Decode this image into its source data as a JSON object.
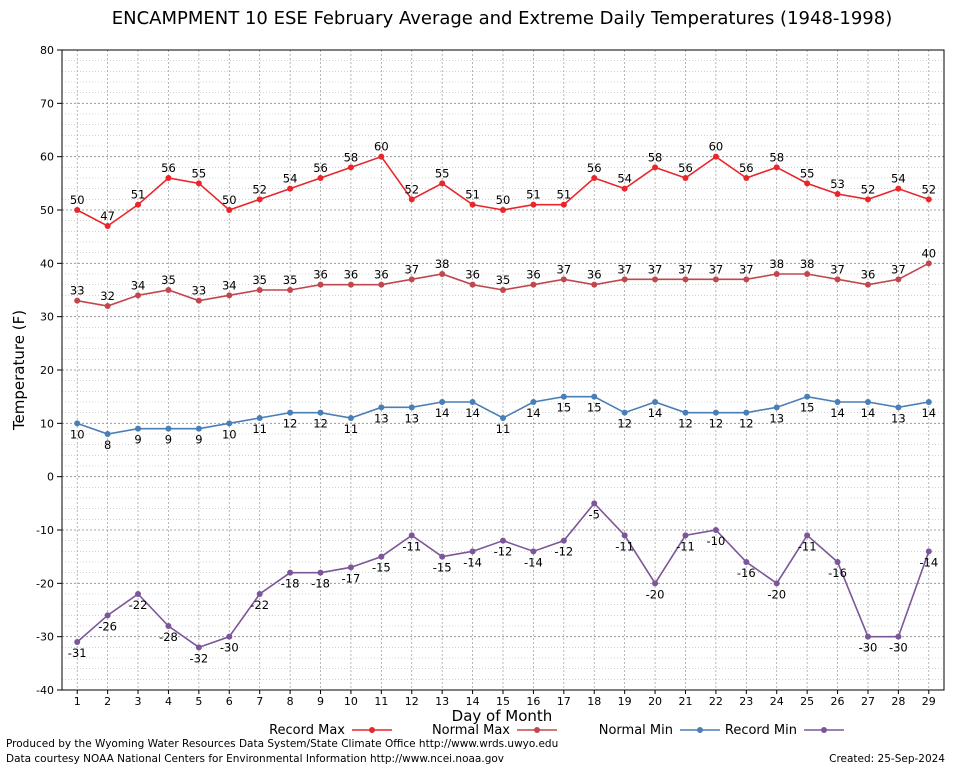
{
  "chart_data": {
    "type": "line",
    "title": "ENCAMPMENT 10 ESE February Average and Extreme Daily Temperatures (1948-1998)",
    "xlabel": "Day of Month",
    "ylabel": "Temperature (F)",
    "ylim": [
      -40,
      80
    ],
    "yticks": [
      -40,
      -30,
      -20,
      -10,
      0,
      10,
      20,
      30,
      40,
      50,
      60,
      70,
      80
    ],
    "x": [
      1,
      2,
      3,
      4,
      5,
      6,
      7,
      8,
      9,
      10,
      11,
      12,
      13,
      14,
      15,
      16,
      17,
      18,
      19,
      20,
      21,
      22,
      23,
      24,
      25,
      26,
      27,
      28,
      29
    ],
    "grid": true,
    "legend_position": "bottom",
    "series": [
      {
        "name": "Record Max",
        "color": "#e8262b",
        "values": [
          50,
          47,
          51,
          56,
          55,
          50,
          52,
          54,
          56,
          58,
          60,
          52,
          55,
          51,
          50,
          51,
          51,
          56,
          54,
          58,
          56,
          60,
          56,
          58,
          55,
          53,
          52,
          54,
          52
        ]
      },
      {
        "name": "Normal Max",
        "color": "#c0484d",
        "values": [
          33,
          32,
          34,
          35,
          33,
          34,
          35,
          35,
          36,
          36,
          36,
          37,
          38,
          36,
          35,
          36,
          37,
          36,
          37,
          37,
          37,
          37,
          37,
          38,
          38,
          37,
          36,
          37,
          40
        ]
      },
      {
        "name": "Normal Min",
        "color": "#4a7fb6",
        "values": [
          10,
          8,
          9,
          9,
          9,
          10,
          11,
          12,
          12,
          11,
          13,
          13,
          14,
          14,
          11,
          14,
          15,
          15,
          12,
          14,
          12,
          12,
          12,
          13,
          15,
          14,
          14,
          13,
          14
        ]
      },
      {
        "name": "Record Min",
        "color": "#7b5699",
        "values": [
          -31,
          -26,
          -22,
          -28,
          -32,
          -30,
          -22,
          -18,
          -18,
          -17,
          -15,
          -11,
          -15,
          -14,
          -12,
          -14,
          -12,
          -5,
          -11,
          -20,
          -11,
          -10,
          -16,
          -20,
          -11,
          -16,
          -30,
          -30,
          -14
        ]
      }
    ]
  },
  "footer": {
    "line1": "Produced by the Wyoming Water Resources Data System/State Climate Office http://www.wrds.uwyo.edu",
    "line2": "Data courtesy NOAA National Centers for Environmental Information http://www.ncei.noaa.gov",
    "created": "Created:  25-Sep-2024"
  }
}
